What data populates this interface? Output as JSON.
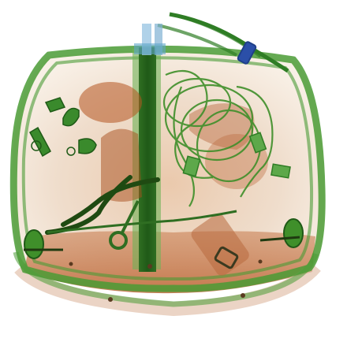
{
  "image": {
    "kind": "x-ray baggage scan",
    "subject": "backpack",
    "palette": {
      "background": "#ffffff",
      "organic": "#b5541f",
      "organic_light": "#e6b899",
      "metal_mixed": "#3f8f2a",
      "metal_dense": "#1f5a17",
      "inorganic_light": "#bfe1a8",
      "metal_blue": "#2b4fa8"
    },
    "visible_objects": [
      "backpack-frame",
      "handle-rod",
      "zipper-pullers",
      "pliers",
      "coiled-cable",
      "scissors",
      "buckle",
      "bottle"
    ]
  }
}
